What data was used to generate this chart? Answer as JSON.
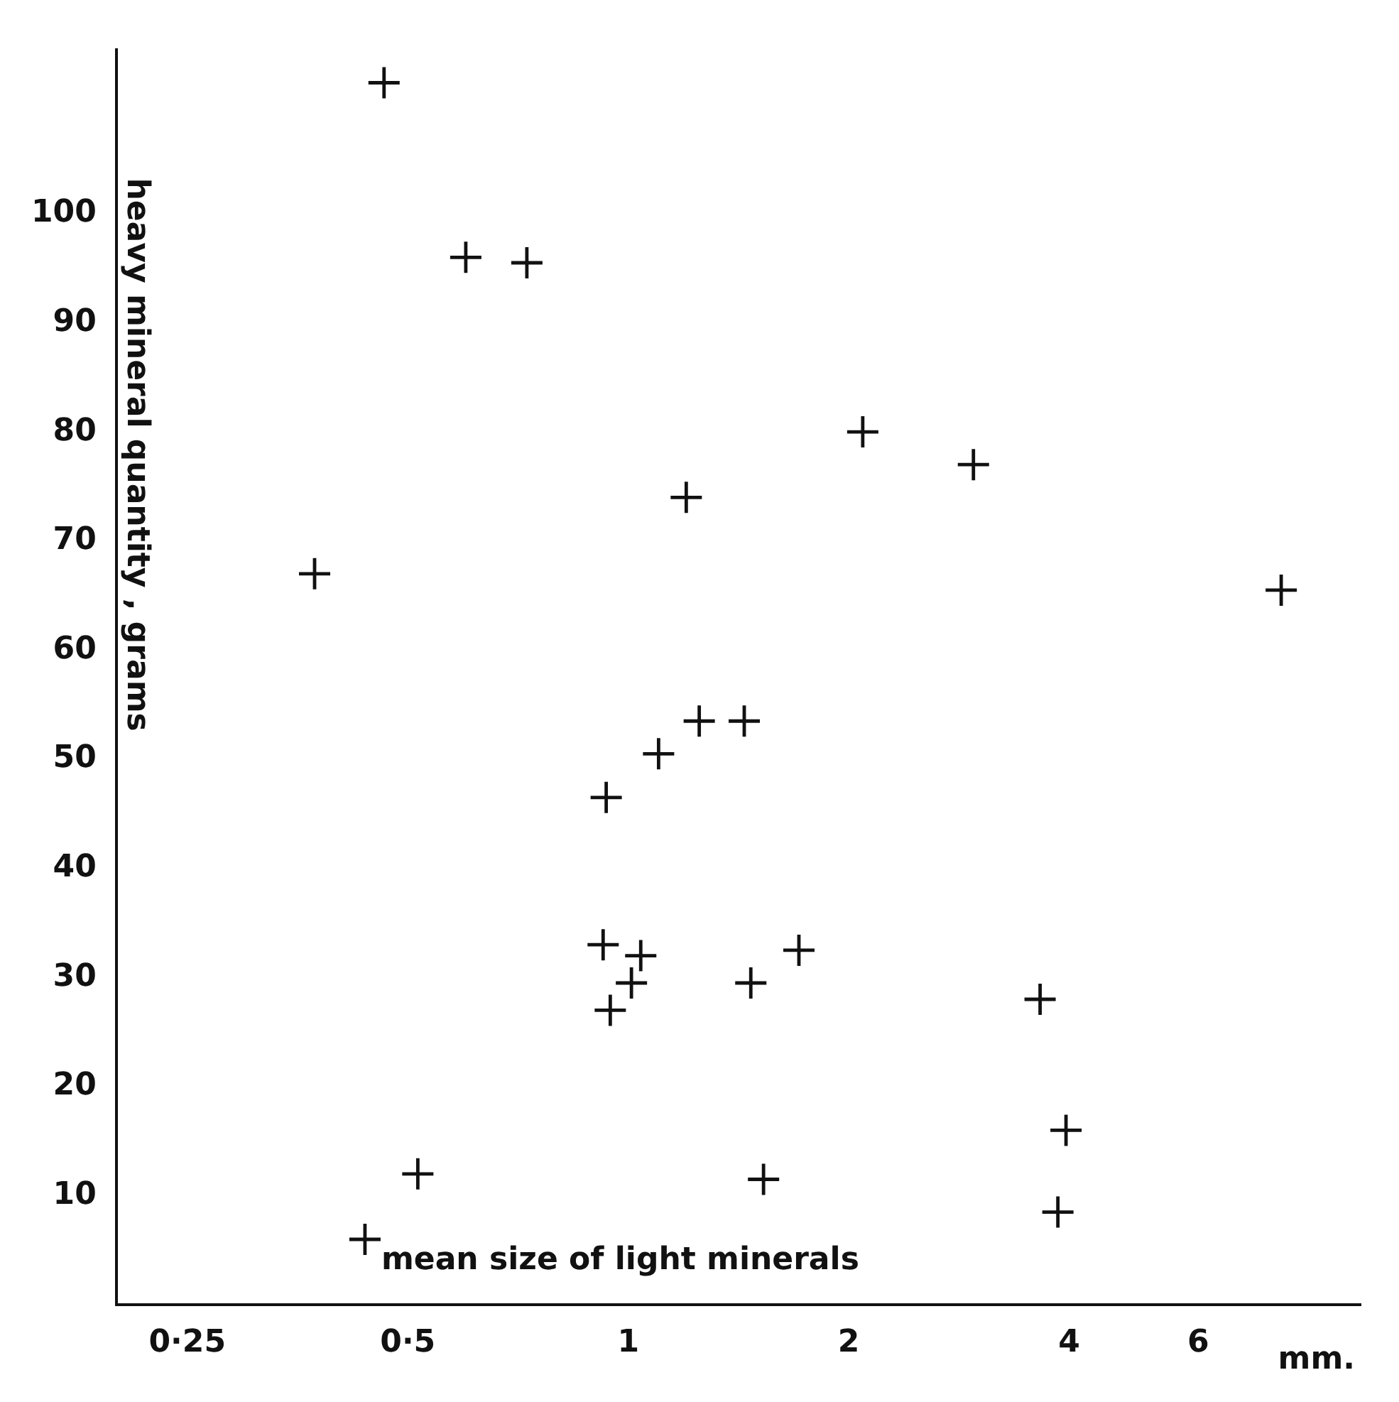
{
  "chart_data": {
    "type": "scatter",
    "xlabel": "mean size of light minerals",
    "ylabel": "heavy mineral quantity , grams",
    "annotations": [
      "mm."
    ],
    "x": [
      0.464,
      0.6,
      0.727,
      0.373,
      2.09,
      2.96,
      1.2,
      7.79,
      1.25,
      1.44,
      1.1,
      0.933,
      0.924,
      1.04,
      1.01,
      0.945,
      1.47,
      1.71,
      3.65,
      3.96,
      0.516,
      1.53,
      3.86,
      0.437
    ],
    "values": [
      112,
      96,
      95.5,
      67,
      80,
      77,
      74,
      65.5,
      53.5,
      53.5,
      50.5,
      46.5,
      33,
      32,
      29.5,
      27,
      29.5,
      32.5,
      28,
      16,
      12,
      11.5,
      8.5,
      6
    ],
    "color": "#111111",
    "marker": "cross",
    "log": "x",
    "grid": false,
    "xlim": [
      0.2,
      10
    ],
    "xticks": [
      {
        "value": 0.25,
        "label": "0·25"
      },
      {
        "value": 0.5,
        "label": "0·5"
      },
      1,
      2,
      4,
      6
    ],
    "ylim": [
      0,
      115
    ],
    "yticks": [
      10,
      20,
      30,
      40,
      50,
      60,
      70,
      80,
      90,
      100
    ]
  }
}
